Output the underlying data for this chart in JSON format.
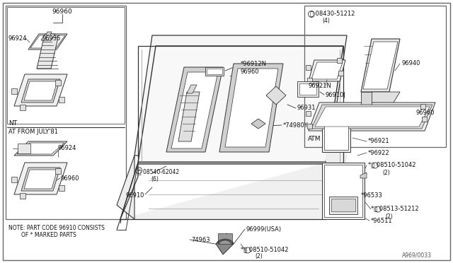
{
  "bg_color": "#ffffff",
  "border_color": "#666666",
  "line_color": "#333333",
  "diagram_code": "A969/0033",
  "note_line1": "NOTE: PART CODE 96910 CONSISTS",
  "note_line2": "OF * MARKED PARTS"
}
